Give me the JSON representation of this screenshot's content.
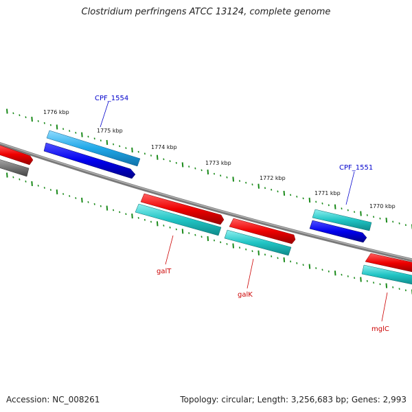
{
  "title": "Clostridium perfringens ATCC 13124, complete genome",
  "footer": {
    "accession": "Accession: NC_008261",
    "summary": "Topology: circular; Length: 3,256,683 bp; Genes: 2,993"
  },
  "colors": {
    "backbone": "#8a8a8a",
    "forward_cds": "#e00000",
    "reverse_cds": "#0000e8",
    "orf_cyan": "#22c8c8",
    "orf_lightblue": "#20a8e8",
    "ticks": "#1a8a1a",
    "label_red": "#cc0000",
    "label_blue": "#0000cc"
  },
  "scale_labels": [
    "1776 kbp",
    "1775 kbp",
    "1774 kbp",
    "1773 kbp",
    "1772 kbp",
    "1771 kbp",
    "1770 kbp"
  ],
  "gene_labels": {
    "cpf1554": "CPF_1554",
    "cpf1551": "CPF_1551",
    "galT": "galT",
    "galK": "galK",
    "mglC": "mglC"
  }
}
